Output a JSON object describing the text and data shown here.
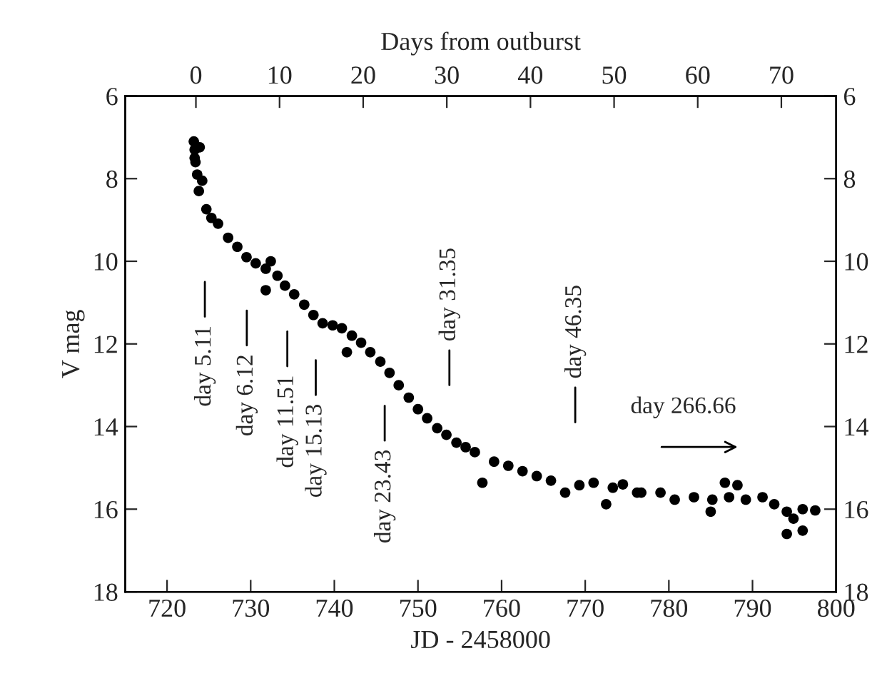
{
  "chart_data": {
    "type": "scatter",
    "xlabel": "JD - 2458000",
    "ylabel": "V mag",
    "x2label": "Days from outburst",
    "series": [
      {
        "color": "#000000",
        "x": [
          723.2,
          723.3,
          723.3,
          723.4,
          723.6,
          723.8,
          723.9,
          724.2,
          724.7,
          725.3,
          726.1,
          727.3,
          728.4,
          729.5,
          730.6,
          731.8,
          731.8,
          732.4,
          733.2,
          734.1,
          735.2,
          736.4,
          737.5,
          738.6,
          739.8,
          740.9,
          741.5,
          742.1,
          743.2,
          744.3,
          745.5,
          746.6,
          747.7,
          748.9,
          750.0,
          751.1,
          752.3,
          753.4,
          754.6,
          755.7,
          756.8,
          757.7,
          759.1,
          760.8,
          762.5,
          764.2,
          765.9,
          767.6,
          769.3,
          771.0,
          772.5,
          773.3,
          774.5,
          776.2,
          776.7,
          779.0,
          780.7,
          783.0,
          785.0,
          785.2,
          786.7,
          787.2,
          788.2,
          789.2,
          791.2,
          792.6,
          794.1,
          794.9,
          794.1,
          796.0,
          796.0,
          797.5
        ],
        "values": [
          7.1,
          7.3,
          7.5,
          7.6,
          7.9,
          8.3,
          7.24,
          8.05,
          8.74,
          8.95,
          9.09,
          9.43,
          9.65,
          9.9,
          10.05,
          10.18,
          10.7,
          10.0,
          10.35,
          10.59,
          10.8,
          11.05,
          11.3,
          11.5,
          11.55,
          11.62,
          12.2,
          11.8,
          11.97,
          12.2,
          12.43,
          12.7,
          13.0,
          13.3,
          13.58,
          13.8,
          14.04,
          14.2,
          14.39,
          14.5,
          14.62,
          15.36,
          14.85,
          14.95,
          15.08,
          15.2,
          15.31,
          15.6,
          15.42,
          15.36,
          15.88,
          15.48,
          15.4,
          15.6,
          15.6,
          15.6,
          15.77,
          15.71,
          16.06,
          15.77,
          15.36,
          15.71,
          15.42,
          15.77,
          15.71,
          15.88,
          16.06,
          16.23,
          16.6,
          16.52,
          16.0,
          16.03
        ]
      }
    ],
    "marker": "circle",
    "xlim": [
      715,
      800
    ],
    "xticks": [
      720,
      730,
      740,
      750,
      760,
      770,
      780,
      790,
      800
    ],
    "x2lim": [
      -8.45,
      76.55
    ],
    "x2ticks": [
      0,
      10,
      20,
      30,
      40,
      50,
      60,
      70
    ],
    "ylim": [
      18,
      6
    ],
    "yticks": [
      6,
      8,
      10,
      12,
      14,
      16,
      18
    ],
    "y2lim": [
      18,
      6
    ],
    "y2ticks": [
      6,
      8,
      10,
      12,
      14,
      16,
      18
    ],
    "grid": false,
    "annotations": [
      "day 5.11",
      "day 6.12",
      "day 11.51",
      "day 15.13",
      "day 23.43",
      "day 31.35",
      "day 46.35",
      "day 266.66"
    ]
  }
}
